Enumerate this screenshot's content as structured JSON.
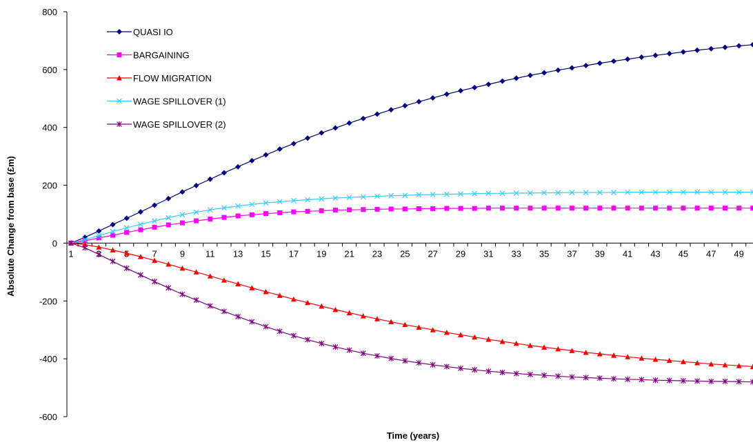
{
  "chart_data": {
    "type": "line",
    "title": "",
    "xlabel": "Time (years)",
    "ylabel": "Absolute Change from base (£m)",
    "ylim": [
      -600,
      800
    ],
    "yticks": [
      -600,
      -400,
      -200,
      0,
      200,
      400,
      600,
      800
    ],
    "xlim": [
      1,
      50
    ],
    "xticks": [
      1,
      3,
      5,
      7,
      9,
      11,
      13,
      15,
      17,
      19,
      21,
      23,
      25,
      27,
      29,
      31,
      33,
      35,
      37,
      39,
      41,
      43,
      45,
      47,
      49
    ],
    "grid": false,
    "legend_position": "top-left",
    "x": [
      1,
      2,
      3,
      4,
      5,
      6,
      7,
      8,
      9,
      10,
      11,
      12,
      13,
      14,
      15,
      16,
      17,
      18,
      19,
      20,
      21,
      22,
      23,
      24,
      25,
      26,
      27,
      28,
      29,
      30,
      31,
      32,
      33,
      34,
      35,
      36,
      37,
      38,
      39,
      40,
      41,
      42,
      43,
      44,
      45,
      46,
      47,
      48,
      49,
      50
    ],
    "series": [
      {
        "name": "QUASI IO",
        "color": "#000080",
        "marker": "diamond",
        "values": [
          0,
          20,
          42,
          64,
          86,
          108,
          131,
          154,
          177,
          199,
          221,
          243,
          264,
          285,
          305,
          325,
          344,
          363,
          381,
          398,
          415,
          431,
          446,
          461,
          475,
          489,
          502,
          515,
          527,
          538,
          549,
          560,
          570,
          580,
          589,
          598,
          606,
          614,
          622,
          629,
          636,
          643,
          649,
          655,
          661,
          667,
          672,
          677,
          682,
          686
        ]
      },
      {
        "name": "BARGAINING",
        "color": "#FF00FF",
        "marker": "square",
        "values": [
          0,
          8,
          18,
          27,
          37,
          46,
          55,
          63,
          70,
          77,
          83,
          89,
          94,
          98,
          102,
          105,
          108,
          110,
          112,
          114,
          115,
          116,
          117,
          118,
          118,
          119,
          119,
          120,
          120,
          120,
          121,
          121,
          121,
          121,
          121,
          121,
          121,
          121,
          121,
          121,
          121,
          121,
          121,
          121,
          121,
          121,
          121,
          121,
          121,
          121
        ]
      },
      {
        "name": "FLOW MIGRATION",
        "color": "#FF0000",
        "marker": "triangle",
        "values": [
          0,
          -5,
          -14,
          -24,
          -35,
          -47,
          -60,
          -73,
          -87,
          -100,
          -114,
          -128,
          -141,
          -155,
          -168,
          -181,
          -194,
          -206,
          -218,
          -230,
          -241,
          -252,
          -262,
          -272,
          -282,
          -291,
          -300,
          -309,
          -317,
          -325,
          -333,
          -340,
          -347,
          -354,
          -360,
          -366,
          -372,
          -378,
          -383,
          -388,
          -393,
          -398,
          -402,
          -406,
          -410,
          -414,
          -418,
          -421,
          -424,
          -427
        ]
      },
      {
        "name": "WAGE SPILLOVER (1)",
        "color": "#33CCFF",
        "marker": "x",
        "values": [
          0,
          12,
          26,
          40,
          53,
          65,
          77,
          88,
          98,
          107,
          115,
          122,
          128,
          134,
          139,
          143,
          147,
          150,
          153,
          156,
          158,
          160,
          162,
          164,
          165,
          167,
          168,
          169,
          170,
          171,
          172,
          172,
          173,
          173,
          174,
          174,
          175,
          175,
          175,
          175,
          176,
          176,
          176,
          176,
          176,
          176,
          176,
          176,
          176,
          176
        ]
      },
      {
        "name": "WAGE SPILLOVER (2)",
        "color": "#800080",
        "marker": "star",
        "values": [
          0,
          -16,
          -39,
          -63,
          -87,
          -110,
          -133,
          -155,
          -177,
          -197,
          -217,
          -236,
          -254,
          -272,
          -289,
          -305,
          -320,
          -334,
          -347,
          -359,
          -370,
          -381,
          -390,
          -399,
          -407,
          -414,
          -421,
          -427,
          -433,
          -438,
          -443,
          -447,
          -451,
          -454,
          -457,
          -460,
          -463,
          -465,
          -467,
          -469,
          -471,
          -472,
          -474,
          -475,
          -476,
          -477,
          -478,
          -478,
          -479,
          -480
        ]
      }
    ]
  }
}
